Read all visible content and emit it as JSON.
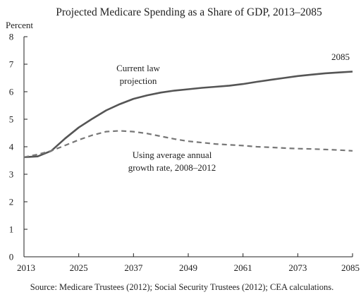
{
  "chart_data": {
    "type": "line",
    "title": "Projected Medicare Spending as a Share of GDP, 2013–2085",
    "ylabel": "Percent",
    "xlabel": "",
    "xlim": [
      2013,
      2085
    ],
    "ylim": [
      0,
      8
    ],
    "x_ticks": [
      2013,
      2025,
      2037,
      2049,
      2061,
      2073,
      2085
    ],
    "y_ticks": [
      0,
      1,
      2,
      3,
      4,
      5,
      6,
      7,
      8
    ],
    "grid": false,
    "series": [
      {
        "name": "Current law projection",
        "style": "solid",
        "color": "#555555",
        "x": [
          2013,
          2016,
          2019,
          2022,
          2025,
          2028,
          2031,
          2034,
          2037,
          2040,
          2043,
          2046,
          2049,
          2052,
          2055,
          2058,
          2061,
          2064,
          2067,
          2070,
          2073,
          2076,
          2079,
          2082,
          2085
        ],
        "y": [
          3.62,
          3.65,
          3.85,
          4.3,
          4.7,
          5.02,
          5.32,
          5.55,
          5.74,
          5.87,
          5.97,
          6.04,
          6.09,
          6.14,
          6.18,
          6.22,
          6.28,
          6.36,
          6.43,
          6.5,
          6.57,
          6.62,
          6.67,
          6.7,
          6.73
        ]
      },
      {
        "name": "Using average annual growth rate, 2008–2012",
        "style": "dashed",
        "color": "#777777",
        "x": [
          2013,
          2016,
          2019,
          2022,
          2025,
          2028,
          2031,
          2034,
          2037,
          2040,
          2043,
          2046,
          2049,
          2052,
          2055,
          2058,
          2061,
          2064,
          2067,
          2070,
          2073,
          2076,
          2079,
          2082,
          2085
        ],
        "y": [
          3.62,
          3.72,
          3.85,
          4.05,
          4.25,
          4.42,
          4.55,
          4.58,
          4.55,
          4.48,
          4.38,
          4.28,
          4.2,
          4.15,
          4.1,
          4.07,
          4.04,
          4.0,
          3.98,
          3.95,
          3.93,
          3.92,
          3.9,
          3.88,
          3.85
        ]
      }
    ],
    "annotations": [
      {
        "text": "Current law",
        "series": 0
      },
      {
        "text": "projection",
        "series": 0
      },
      {
        "text": "2085",
        "series": 0
      },
      {
        "text": "Using average annual",
        "series": 1
      },
      {
        "text": "growth rate, 2008–2012",
        "series": 1
      }
    ],
    "source": "Source: Medicare Trustees (2012); Social Security Trustees (2012); CEA calculations."
  }
}
